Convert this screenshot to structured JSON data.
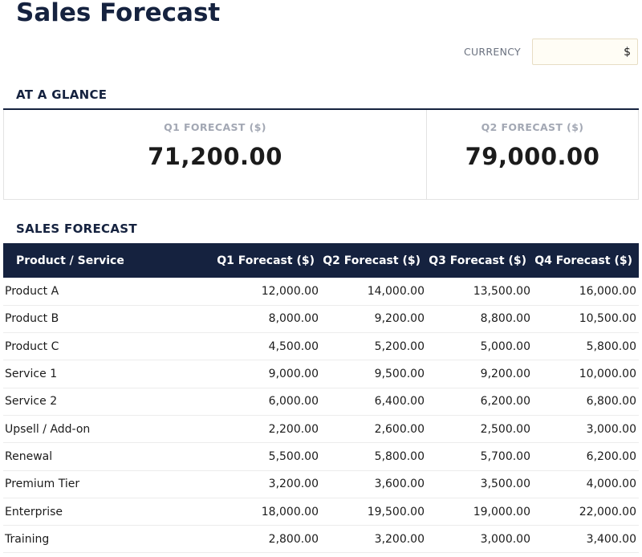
{
  "page": {
    "title": "Sales Forecast"
  },
  "currency": {
    "label": "CURRENCY",
    "value": "$"
  },
  "at_a_glance": {
    "heading": "AT A GLANCE",
    "cards": [
      {
        "label": "Q1 FORECAST ($)",
        "value": "71,200.00"
      },
      {
        "label": "Q2 FORECAST ($)",
        "value": "79,000.00"
      }
    ]
  },
  "sales_forecast": {
    "heading": "SALES FORECAST",
    "columns": [
      "Product / Service",
      "Q1 Forecast ($)",
      "Q2 Forecast ($)",
      "Q3 Forecast ($)",
      "Q4 Forecast ($)"
    ],
    "rows": [
      [
        "Product A",
        "12,000.00",
        "14,000.00",
        "13,500.00",
        "16,000.00"
      ],
      [
        "Product B",
        "8,000.00",
        "9,200.00",
        "8,800.00",
        "10,500.00"
      ],
      [
        "Product C",
        "4,500.00",
        "5,200.00",
        "5,000.00",
        "5,800.00"
      ],
      [
        "Service 1",
        "9,000.00",
        "9,500.00",
        "9,200.00",
        "10,000.00"
      ],
      [
        "Service 2",
        "6,000.00",
        "6,400.00",
        "6,200.00",
        "6,800.00"
      ],
      [
        "Upsell / Add-on",
        "2,200.00",
        "2,600.00",
        "2,500.00",
        "3,000.00"
      ],
      [
        "Renewal",
        "5,500.00",
        "5,800.00",
        "5,700.00",
        "6,200.00"
      ],
      [
        "Premium Tier",
        "3,200.00",
        "3,600.00",
        "3,500.00",
        "4,000.00"
      ],
      [
        "Enterprise",
        "18,000.00",
        "19,500.00",
        "19,000.00",
        "22,000.00"
      ],
      [
        "Training",
        "2,800.00",
        "3,200.00",
        "3,000.00",
        "3,400.00"
      ]
    ]
  },
  "colors": {
    "navy": "#15223f",
    "currency_input_bg": "#fffdf5",
    "kpi_label": "#a3a8b4"
  }
}
